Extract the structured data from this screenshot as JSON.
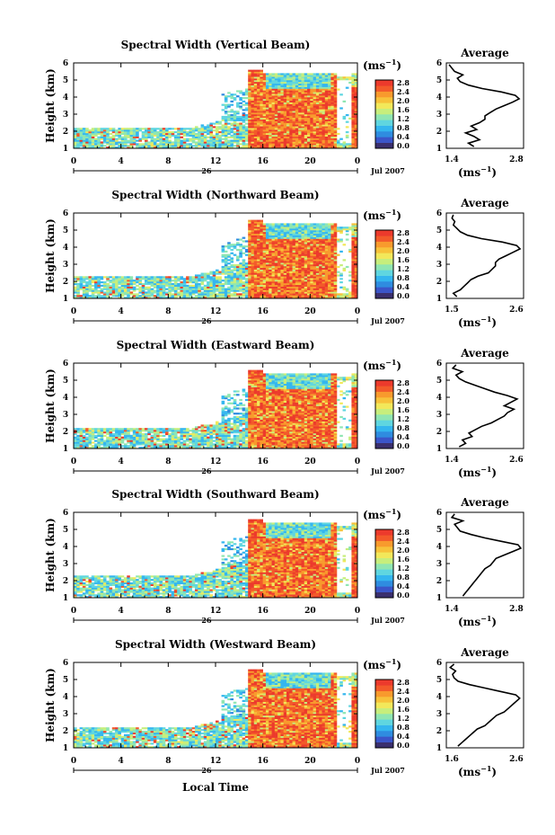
{
  "figure": {
    "xlabel": "Local Time",
    "date_label": "Jul 2007",
    "day_label": "26",
    "ylabel": "Height (km)",
    "cbar_unit_base": "(ms",
    "cbar_unit_exp": "−1",
    "cbar_unit_close": ")",
    "avg_title": "Average",
    "avg_xlabel_base": "(ms",
    "avg_xlabel_exp": "−1",
    "avg_xlabel_close": ")"
  },
  "colors": {
    "scale": [
      "#3a2f6e",
      "#3b55c9",
      "#2f8ce0",
      "#34b6ef",
      "#5fd6e0",
      "#8fe6b2",
      "#c7ee7c",
      "#f2e85a",
      "#f7c23a",
      "#f89a2d",
      "#f35a2a",
      "#ec3a2c"
    ],
    "empty": "#ffffff"
  },
  "chart_data": [
    {
      "type": "heatmap",
      "title": "Spectral Width (Vertical Beam)",
      "x_ticks": [
        "0",
        "4",
        "8",
        "12",
        "16",
        "20",
        "0"
      ],
      "y_ticks": [
        "1",
        "2",
        "3",
        "4",
        "5",
        "6"
      ],
      "xlim": [
        0,
        24
      ],
      "ylim": [
        1,
        6
      ],
      "colorbar_ticks": [
        "2.8",
        "2.4",
        "2.0",
        "1.6",
        "1.2",
        "0.8",
        "0.4",
        "0.0"
      ],
      "avg_x_ticks": [
        "1.4",
        "2.8"
      ],
      "avg_y_ticks": [
        "1",
        "2",
        "3",
        "4",
        "5",
        "6"
      ],
      "avg_profile": {
        "height_km": [
          1.1,
          1.3,
          1.5,
          1.7,
          1.9,
          2.1,
          2.3,
          2.5,
          2.7,
          2.9,
          3.1,
          3.3,
          3.5,
          3.7,
          3.9,
          4.1,
          4.3,
          4.5,
          4.7,
          4.9,
          5.1,
          5.3,
          5.5,
          5.7,
          5.9
        ],
        "width_ms": [
          1.9,
          1.8,
          2.0,
          1.9,
          1.75,
          1.95,
          1.85,
          2.0,
          2.1,
          2.1,
          2.2,
          2.3,
          2.45,
          2.6,
          2.72,
          2.65,
          2.4,
          2.05,
          1.8,
          1.65,
          1.6,
          1.7,
          1.55,
          1.5,
          1.45
        ],
        "xlim": [
          1.4,
          2.8
        ]
      }
    },
    {
      "type": "heatmap",
      "title": "Spectral Width (Northward Beam)",
      "x_ticks": [
        "0",
        "4",
        "8",
        "12",
        "16",
        "20",
        "0"
      ],
      "y_ticks": [
        "1",
        "2",
        "3",
        "4",
        "5",
        "6"
      ],
      "xlim": [
        0,
        24
      ],
      "ylim": [
        1,
        6
      ],
      "colorbar_ticks": [
        "2.8",
        "2.4",
        "2.0",
        "1.6",
        "1.2",
        "0.8",
        "0.4",
        "0.0"
      ],
      "avg_x_ticks": [
        "1.5",
        "2.6"
      ],
      "avg_y_ticks": [
        "1",
        "2",
        "3",
        "4",
        "5",
        "6"
      ],
      "avg_profile": {
        "height_km": [
          1.1,
          1.3,
          1.5,
          1.7,
          1.9,
          2.1,
          2.3,
          2.5,
          2.7,
          2.9,
          3.1,
          3.3,
          3.5,
          3.7,
          3.9,
          4.1,
          4.3,
          4.5,
          4.7,
          4.9,
          5.1,
          5.3,
          5.5,
          5.7,
          5.9
        ],
        "width_ms": [
          1.65,
          1.6,
          1.7,
          1.75,
          1.8,
          1.85,
          1.95,
          2.1,
          2.15,
          2.2,
          2.2,
          2.25,
          2.35,
          2.45,
          2.55,
          2.5,
          2.3,
          2.0,
          1.8,
          1.7,
          1.65,
          1.6,
          1.62,
          1.58,
          1.6
        ],
        "xlim": [
          1.5,
          2.6
        ]
      }
    },
    {
      "type": "heatmap",
      "title": "Spectral Width (Eastward Beam)",
      "x_ticks": [
        "0",
        "4",
        "8",
        "12",
        "16",
        "20",
        "0"
      ],
      "y_ticks": [
        "1",
        "2",
        "3",
        "4",
        "5",
        "6"
      ],
      "xlim": [
        0,
        24
      ],
      "ylim": [
        1,
        6
      ],
      "colorbar_ticks": [
        "2.8",
        "2.4",
        "2.0",
        "1.6",
        "1.2",
        "0.8",
        "0.4",
        "0.0"
      ],
      "avg_x_ticks": [
        "1.4",
        "2.6"
      ],
      "avg_y_ticks": [
        "1",
        "2",
        "3",
        "4",
        "5",
        "6"
      ],
      "avg_profile": {
        "height_km": [
          1.1,
          1.3,
          1.5,
          1.7,
          1.9,
          2.1,
          2.3,
          2.5,
          2.7,
          2.9,
          3.1,
          3.3,
          3.5,
          3.7,
          3.9,
          4.1,
          4.3,
          4.5,
          4.7,
          4.9,
          5.1,
          5.3,
          5.5,
          5.7,
          5.9
        ],
        "width_ms": [
          1.6,
          1.7,
          1.65,
          1.8,
          1.75,
          1.85,
          1.95,
          2.1,
          2.2,
          2.3,
          2.35,
          2.45,
          2.3,
          2.4,
          2.5,
          2.35,
          2.15,
          2.0,
          1.85,
          1.7,
          1.6,
          1.55,
          1.65,
          1.5,
          1.55
        ],
        "xlim": [
          1.4,
          2.6
        ]
      }
    },
    {
      "type": "heatmap",
      "title": "Spectral Width (Southward Beam)",
      "x_ticks": [
        "0",
        "4",
        "8",
        "12",
        "16",
        "20",
        "0"
      ],
      "y_ticks": [
        "1",
        "2",
        "3",
        "4",
        "5",
        "6"
      ],
      "xlim": [
        0,
        24
      ],
      "ylim": [
        1,
        6
      ],
      "colorbar_ticks": [
        "2.8",
        "2.4",
        "2.0",
        "1.6",
        "1.2",
        "0.8",
        "0.4",
        "0.0"
      ],
      "avg_x_ticks": [
        "1.4",
        "2.8"
      ],
      "avg_y_ticks": [
        "1",
        "2",
        "3",
        "4",
        "5",
        "6"
      ],
      "avg_profile": {
        "height_km": [
          1.1,
          1.3,
          1.5,
          1.7,
          1.9,
          2.1,
          2.3,
          2.5,
          2.7,
          2.9,
          3.1,
          3.3,
          3.5,
          3.7,
          3.9,
          4.1,
          4.3,
          4.5,
          4.7,
          4.9,
          5.1,
          5.3,
          5.5,
          5.7,
          5.9
        ],
        "width_ms": [
          1.7,
          1.75,
          1.8,
          1.85,
          1.9,
          1.95,
          2.0,
          2.05,
          2.1,
          2.2,
          2.25,
          2.3,
          2.45,
          2.6,
          2.75,
          2.7,
          2.4,
          2.1,
          1.85,
          1.65,
          1.6,
          1.55,
          1.7,
          1.5,
          1.55
        ],
        "xlim": [
          1.4,
          2.8
        ]
      }
    },
    {
      "type": "heatmap",
      "title": "Spectral Width (Westward Beam)",
      "x_ticks": [
        "0",
        "4",
        "8",
        "12",
        "16",
        "20",
        "0"
      ],
      "y_ticks": [
        "1",
        "2",
        "3",
        "4",
        "5",
        "6"
      ],
      "xlim": [
        0,
        24
      ],
      "ylim": [
        1,
        6
      ],
      "colorbar_ticks": [
        "2.8",
        "2.4",
        "2.0",
        "1.6",
        "1.2",
        "0.8",
        "0.4",
        "0.0"
      ],
      "avg_x_ticks": [
        "1.6",
        "2.6"
      ],
      "avg_y_ticks": [
        "1",
        "2",
        "3",
        "4",
        "5",
        "6"
      ],
      "avg_profile": {
        "height_km": [
          1.1,
          1.3,
          1.5,
          1.7,
          1.9,
          2.1,
          2.3,
          2.5,
          2.7,
          2.9,
          3.1,
          3.3,
          3.5,
          3.7,
          3.9,
          4.1,
          4.3,
          4.5,
          4.7,
          4.9,
          5.1,
          5.3,
          5.5,
          5.7,
          5.9
        ],
        "width_ms": [
          1.75,
          1.8,
          1.85,
          1.9,
          1.95,
          2.0,
          2.1,
          2.15,
          2.2,
          2.25,
          2.35,
          2.4,
          2.45,
          2.5,
          2.55,
          2.5,
          2.3,
          2.1,
          1.9,
          1.75,
          1.7,
          1.68,
          1.72,
          1.65,
          1.7
        ],
        "xlim": [
          1.6,
          2.6
        ]
      }
    }
  ]
}
